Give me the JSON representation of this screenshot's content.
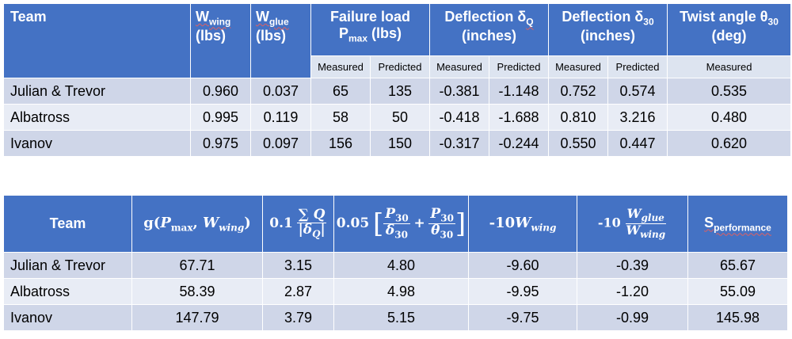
{
  "table1": {
    "headers": {
      "team": "Team",
      "w_wing_main": "W",
      "w_wing_sub": "wing",
      "w_wing_unit": "(lbs)",
      "w_glue_main": "W",
      "w_glue_sub": "glue",
      "w_glue_unit": "(lbs)",
      "failure_line1": "Failure load",
      "failure_p": "P",
      "failure_sub": "max",
      "failure_unit": "(lbs)",
      "defq_line1": "Deflection δ",
      "defq_sub": "Q",
      "defq_unit": "(inches)",
      "def30_line1": "Deflection δ",
      "def30_sub": "30",
      "def30_unit": "(inches)",
      "twist_line1": "Twist angle θ",
      "twist_sub": "30",
      "twist_unit": "(deg)"
    },
    "subheaders": [
      "Measured",
      "Predicted",
      "Measured",
      "Predicted",
      "Measured",
      "Predicted",
      "Measured"
    ],
    "rows": [
      {
        "team": "Julian & Trevor",
        "values": [
          "0.960",
          "0.037",
          "65",
          "135",
          "-0.381",
          "-1.148",
          "0.752",
          "0.574",
          "0.535"
        ]
      },
      {
        "team": "Albatross",
        "values": [
          "0.995",
          "0.119",
          "58",
          "50",
          "-0.418",
          "-1.688",
          "0.810",
          "3.216",
          "0.480"
        ]
      },
      {
        "team": "Ivanov",
        "values": [
          "0.975",
          "0.097",
          "156",
          "150",
          "-0.317",
          "-0.244",
          "0.550",
          "0.447",
          "0.620"
        ]
      }
    ]
  },
  "table2": {
    "headers": {
      "team": "Team",
      "g_bold": "g",
      "g_open": "(",
      "g_p": "P",
      "g_p_sub": "max",
      "g_comma": ", ",
      "g_w": "W",
      "g_w_sub": "wing",
      "g_close": ")",
      "sumq_coef": "0.1",
      "sumq_num": "∑ Q",
      "sumq_den": "|δ",
      "sumq_den_sub": "Q",
      "sumq_den_end": "|",
      "p30_coef": "0.05",
      "p30_lb": "[",
      "p30_num": "P",
      "p30_num_sub": "30",
      "p30_den1": "δ",
      "p30_den1_sub": "30",
      "p30_plus": "+",
      "p30_den2": "θ",
      "p30_den2_sub": "30",
      "p30_rb": "]",
      "wing_coef": "-10",
      "wing_w": "W",
      "wing_sub": "wing",
      "glue_coef": "-10",
      "glue_num": "W",
      "glue_num_sub": "glue",
      "glue_den": "W",
      "glue_den_sub": "wing",
      "perf_main": "S",
      "perf_sub": "performance"
    },
    "rows": [
      {
        "team": "Julian & Trevor",
        "values": [
          "67.71",
          "3.15",
          "4.80",
          "-9.60",
          "-0.39",
          "65.67"
        ]
      },
      {
        "team": "Albatross",
        "values": [
          "58.39",
          "2.87",
          "4.98",
          "-9.95",
          "-1.20",
          "55.09"
        ]
      },
      {
        "team": "Ivanov",
        "values": [
          "147.79",
          "3.79",
          "5.15",
          "-9.75",
          "-0.99",
          "145.98"
        ]
      }
    ]
  }
}
